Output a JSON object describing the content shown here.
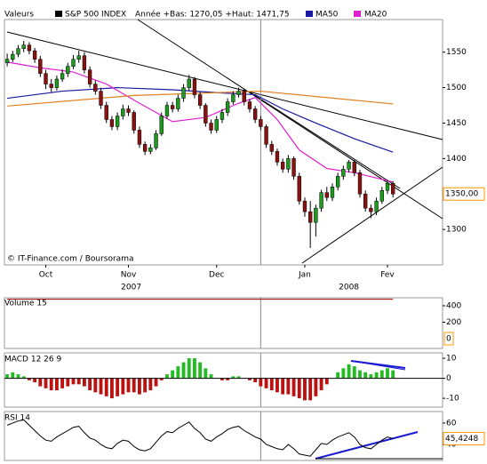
{
  "chart_data": [
    {
      "type": "candlestick",
      "label": "Valeurs",
      "name": "S&P 500 INDEX",
      "color": "#000000",
      "subtitle": "Année +Bas: 1270,05 +Haut: 1471,75",
      "up_color": "#1e9a1e",
      "down_color": "#8b1010",
      "open": [
        1535,
        1540,
        1547,
        1555,
        1560,
        1552,
        1540,
        1520,
        1505,
        1500,
        1512,
        1520,
        1530,
        1540,
        1545,
        1525,
        1505,
        1495,
        1475,
        1455,
        1445,
        1460,
        1470,
        1465,
        1440,
        1420,
        1410,
        1415,
        1435,
        1460,
        1475,
        1470,
        1485,
        1500,
        1512,
        1490,
        1475,
        1450,
        1440,
        1455,
        1465,
        1480,
        1490,
        1495,
        1480,
        1470,
        1455,
        1445,
        1420,
        1410,
        1395,
        1385,
        1400,
        1375,
        1340,
        1325,
        1310,
        1330,
        1352,
        1345,
        1360,
        1375,
        1385,
        1395,
        1380,
        1350,
        1330,
        1325,
        1340,
        1355,
        1365
      ],
      "high": [
        1548,
        1552,
        1560,
        1566,
        1564,
        1556,
        1545,
        1525,
        1512,
        1517,
        1526,
        1535,
        1546,
        1552,
        1550,
        1530,
        1510,
        1500,
        1480,
        1460,
        1465,
        1476,
        1475,
        1468,
        1445,
        1424,
        1420,
        1440,
        1465,
        1480,
        1480,
        1490,
        1505,
        1518,
        1515,
        1494,
        1478,
        1455,
        1460,
        1470,
        1485,
        1495,
        1500,
        1498,
        1484,
        1474,
        1460,
        1448,
        1425,
        1414,
        1400,
        1405,
        1403,
        1380,
        1345,
        1340,
        1335,
        1356,
        1360,
        1365,
        1380,
        1390,
        1398,
        1398,
        1384,
        1355,
        1335,
        1345,
        1360,
        1370,
        1368
      ],
      "low": [
        1530,
        1536,
        1543,
        1550,
        1547,
        1535,
        1515,
        1498,
        1494,
        1496,
        1508,
        1515,
        1526,
        1535,
        1520,
        1500,
        1490,
        1470,
        1450,
        1440,
        1440,
        1455,
        1460,
        1435,
        1415,
        1405,
        1406,
        1412,
        1432,
        1456,
        1465,
        1466,
        1480,
        1496,
        1485,
        1470,
        1445,
        1435,
        1436,
        1450,
        1460,
        1476,
        1486,
        1475,
        1465,
        1450,
        1440,
        1415,
        1405,
        1390,
        1380,
        1380,
        1370,
        1335,
        1318,
        1274,
        1290,
        1325,
        1340,
        1340,
        1355,
        1370,
        1380,
        1375,
        1345,
        1325,
        1316,
        1320,
        1336,
        1350,
        1345
      ],
      "close": [
        1540,
        1547,
        1555,
        1560,
        1552,
        1540,
        1520,
        1505,
        1500,
        1512,
        1520,
        1530,
        1540,
        1545,
        1525,
        1505,
        1495,
        1475,
        1455,
        1445,
        1460,
        1470,
        1465,
        1440,
        1420,
        1410,
        1415,
        1435,
        1460,
        1475,
        1470,
        1485,
        1500,
        1512,
        1490,
        1475,
        1450,
        1440,
        1455,
        1465,
        1480,
        1490,
        1495,
        1480,
        1470,
        1455,
        1445,
        1420,
        1410,
        1395,
        1385,
        1400,
        1375,
        1340,
        1325,
        1310,
        1330,
        1352,
        1345,
        1360,
        1375,
        1385,
        1395,
        1380,
        1350,
        1330,
        1325,
        1340,
        1355,
        1365,
        1350
      ],
      "last_close_label": "1350,00",
      "lines": [
        {
          "name": "MA50",
          "color": "#1a1aa0",
          "x": [
            0,
            10,
            20,
            30,
            40,
            45,
            50,
            56,
            63,
            70
          ],
          "values": [
            1485,
            1495,
            1500,
            1497,
            1492,
            1490,
            1470,
            1450,
            1428,
            1409
          ]
        },
        {
          "name": "MA20",
          "color": "#e020d0",
          "x": [
            0,
            6,
            12,
            18,
            24,
            30,
            36,
            42,
            45,
            49,
            53,
            58,
            63,
            70
          ],
          "values": [
            1536,
            1528,
            1522,
            1505,
            1478,
            1452,
            1458,
            1478,
            1486,
            1455,
            1412,
            1386,
            1380,
            1367
          ]
        },
        {
          "color": "#e08020",
          "x": [
            0,
            23,
            46,
            70
          ],
          "values": [
            1474,
            1489,
            1495,
            1477
          ]
        }
      ],
      "xlim": [
        -0.5,
        79
      ],
      "ylim": [
        1250,
        1596
      ],
      "yticks": [
        1300,
        1400,
        1450,
        1500,
        1550
      ],
      "xticks": [
        {
          "value": 7,
          "label": "Oct"
        },
        {
          "value": 22,
          "label": "Nov"
        },
        {
          "value": 38,
          "label": "Dec"
        },
        {
          "value": 54,
          "label": "Jan"
        },
        {
          "value": 69,
          "label": "Fev"
        }
      ],
      "year_labels": [
        {
          "value": 22.5,
          "label": "2007"
        },
        {
          "value": 62,
          "label": "2008"
        }
      ],
      "separator_x": 46,
      "credit": "© IT-Finance.com / Boursorama"
    },
    {
      "type": "line",
      "title": "Volume 15",
      "ylim": [
        -119,
        497
      ],
      "yticks": [
        200,
        400
      ],
      "series": [
        {
          "color": "#a00000",
          "x": [
            0,
            70
          ],
          "values": [
            480,
            480
          ]
        }
      ],
      "last_value": 0,
      "last_color": "#ff9900"
    },
    {
      "type": "bar",
      "title": "MACD 12 26 9",
      "ylim": [
        -14.4,
        12.7
      ],
      "yticks": [
        -10,
        0,
        10
      ],
      "pos_color": "#22bb22",
      "neg_color": "#bb1111",
      "values": [
        2,
        3,
        2,
        1,
        -1,
        -2,
        -4,
        -5,
        -6,
        -6,
        -5,
        -4,
        -3,
        -3,
        -4,
        -6,
        -7,
        -8,
        -9,
        -10,
        -9,
        -8,
        -7,
        -7,
        -8,
        -7,
        -6,
        -4,
        -1,
        2,
        4,
        6,
        8,
        10,
        10,
        8,
        5,
        2,
        0,
        -1,
        -1,
        1,
        1,
        0,
        -1,
        -2,
        -4,
        -5,
        -6,
        -7,
        -8,
        -8,
        -9,
        -10,
        -11,
        -11,
        -9,
        -6,
        -3,
        0,
        3,
        5,
        7,
        6,
        4,
        3,
        2,
        3,
        4,
        5,
        4
      ]
    },
    {
      "type": "line",
      "title": "RSI 14",
      "ylim": [
        25,
        70.8
      ],
      "yticks": [
        40,
        60
      ],
      "color": "#000000",
      "values": [
        58,
        60,
        62,
        63,
        58,
        53,
        48,
        44,
        43,
        47,
        50,
        53,
        56,
        57,
        51,
        46,
        44,
        40,
        37,
        36,
        41,
        44,
        43,
        38,
        35,
        34,
        36,
        42,
        48,
        52,
        51,
        55,
        58,
        61,
        55,
        51,
        45,
        43,
        47,
        50,
        54,
        56,
        57,
        53,
        50,
        47,
        45,
        40,
        38,
        36,
        35,
        40,
        36,
        31,
        30,
        29,
        35,
        41,
        40,
        44,
        47,
        49,
        51,
        47,
        40,
        37,
        36,
        40,
        44,
        47,
        45.4248
      ],
      "last_label": "45,4248",
      "last_color": "#ff9900"
    }
  ]
}
